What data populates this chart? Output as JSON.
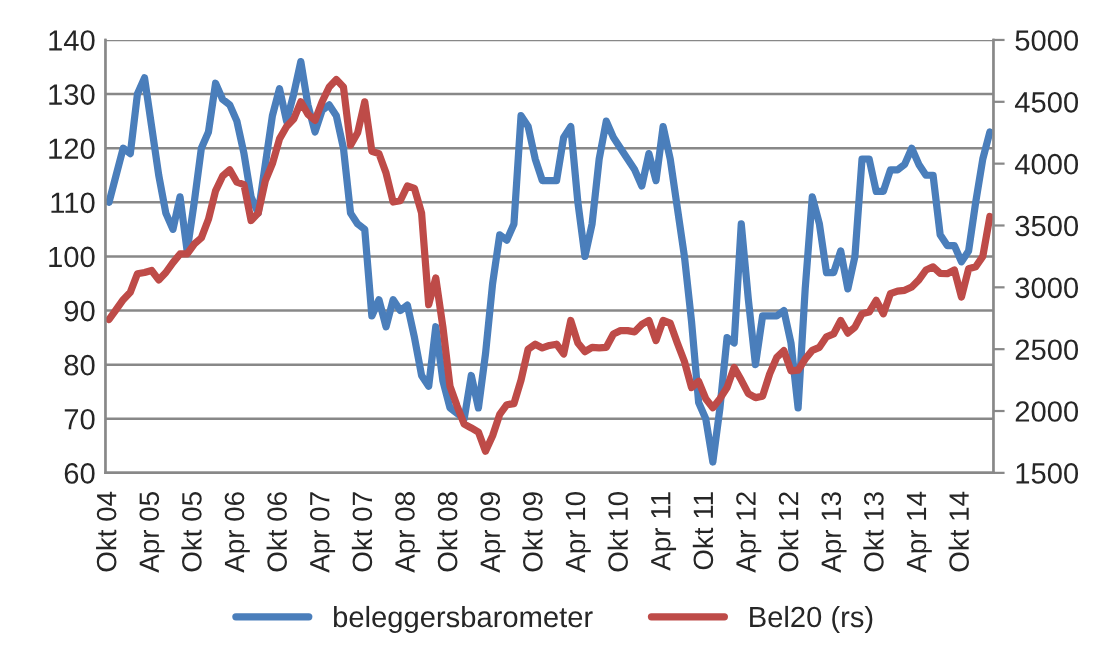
{
  "chart_data": {
    "type": "line",
    "categories": [
      "Okt 04",
      null,
      null,
      null,
      null,
      null,
      "Apr 05",
      null,
      null,
      null,
      null,
      null,
      "Okt 05",
      null,
      null,
      null,
      null,
      null,
      "Apr 06",
      null,
      null,
      null,
      null,
      null,
      "Okt 06",
      null,
      null,
      null,
      null,
      null,
      "Apr 07",
      null,
      null,
      null,
      null,
      null,
      "Okt 07",
      null,
      null,
      null,
      null,
      null,
      "Apr 08",
      null,
      null,
      null,
      null,
      null,
      "Okt 08",
      null,
      null,
      null,
      null,
      null,
      "Apr 09",
      null,
      null,
      null,
      null,
      null,
      "Okt 09",
      null,
      null,
      null,
      null,
      null,
      "Apr 10",
      null,
      null,
      null,
      null,
      null,
      "Okt 10",
      null,
      null,
      null,
      null,
      null,
      "Apr 11",
      null,
      null,
      null,
      null,
      null,
      "Okt 11",
      null,
      null,
      null,
      null,
      null,
      "Apr 12",
      null,
      null,
      null,
      null,
      null,
      "Okt 12",
      null,
      null,
      null,
      null,
      null,
      "Apr 13",
      null,
      null,
      null,
      null,
      null,
      "Okt 13",
      null,
      null,
      null,
      null,
      null,
      "Apr 14",
      null,
      null,
      null,
      null,
      null,
      "Okt 14",
      null,
      null,
      null,
      null
    ],
    "series": [
      {
        "name": "beleggersbarometer",
        "color": "#4a7ebb",
        "values": [
          110,
          115,
          120,
          119,
          130,
          133,
          124,
          115,
          108,
          105,
          111,
          101,
          110,
          120,
          123,
          132,
          129,
          128,
          125,
          119,
          111,
          108,
          117,
          126,
          131,
          125,
          130,
          136,
          128,
          123,
          127,
          128,
          126,
          120,
          108,
          106,
          105,
          89,
          92,
          87,
          92,
          90,
          91,
          85,
          78,
          76,
          87,
          77,
          72,
          71,
          70,
          78,
          72,
          82,
          95,
          104,
          103,
          106,
          126,
          124,
          118,
          114,
          114,
          114,
          122,
          124,
          110,
          100,
          106,
          118,
          125,
          122,
          120,
          118,
          116,
          113,
          119,
          114,
          124,
          118,
          109,
          100,
          88,
          73,
          70,
          62,
          72,
          85,
          84,
          106,
          92,
          80,
          89,
          89,
          89,
          90,
          84,
          72,
          94,
          111,
          106,
          97,
          97,
          101,
          94,
          100,
          118,
          118,
          112,
          112,
          116,
          116,
          117,
          120,
          117,
          115,
          115,
          104,
          102,
          102,
          99,
          101,
          110,
          118,
          123
        ]
      },
      {
        "name": "Bel20 (rs)",
        "color": "#be4b48",
        "axis": "y2",
        "values": [
          2740,
          2820,
          2900,
          2960,
          3110,
          3120,
          3136,
          3060,
          3120,
          3200,
          3270,
          3270,
          3350,
          3400,
          3550,
          3780,
          3900,
          3950,
          3850,
          3830,
          3540,
          3600,
          3860,
          4000,
          4200,
          4300,
          4360,
          4500,
          4400,
          4350,
          4500,
          4620,
          4680,
          4620,
          4150,
          4250,
          4500,
          4100,
          4081,
          3924,
          3690,
          3700,
          3819,
          3800,
          3600,
          2860,
          3075,
          2680,
          2200,
          2040,
          1894,
          1863,
          1830,
          1675,
          1800,
          1973,
          2051,
          2060,
          2250,
          2500,
          2540,
          2510,
          2530,
          2540,
          2461,
          2732,
          2550,
          2480,
          2515,
          2510,
          2515,
          2623,
          2650,
          2650,
          2640,
          2700,
          2732,
          2569,
          2732,
          2710,
          2550,
          2400,
          2190,
          2240,
          2100,
          2027,
          2100,
          2190,
          2352,
          2250,
          2140,
          2108,
          2120,
          2300,
          2434,
          2488,
          2325,
          2330,
          2420,
          2490,
          2515,
          2600,
          2623,
          2732,
          2630,
          2678,
          2786,
          2800,
          2895,
          2786,
          2949,
          2970,
          2976,
          3003,
          3060,
          3140,
          3166,
          3112,
          3110,
          3140,
          2922,
          3150,
          3166,
          3250,
          3573
        ]
      }
    ],
    "ylim": [
      60,
      140
    ],
    "yticks": [
      60,
      70,
      80,
      90,
      100,
      110,
      120,
      130,
      140
    ],
    "y2lim": [
      1500,
      5000
    ],
    "y2ticks": [
      1500,
      2000,
      2500,
      3000,
      3500,
      4000,
      4500,
      5000
    ],
    "grid": "y",
    "legend": "bottom",
    "marker": "none",
    "line_style": "solid"
  }
}
